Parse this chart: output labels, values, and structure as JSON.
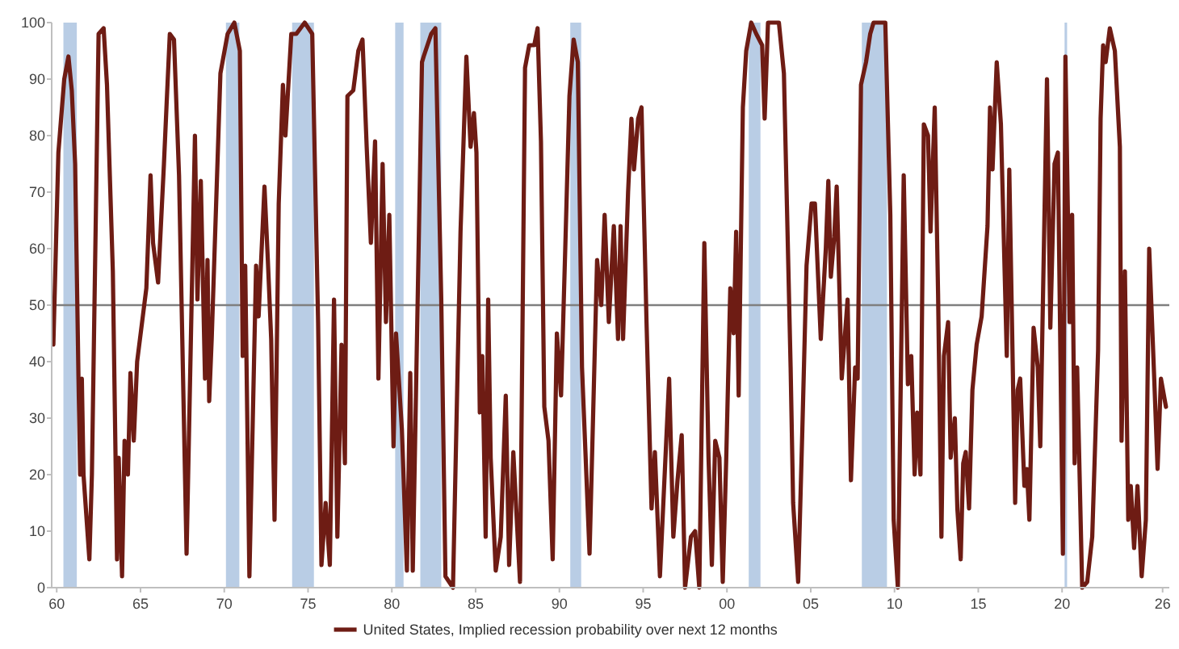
{
  "chart_data": {
    "type": "line",
    "xlim": [
      1959.7,
      2026.4
    ],
    "ylim": [
      0,
      100
    ],
    "xticks": [
      {
        "value": 1960,
        "label": "60"
      },
      {
        "value": 1965,
        "label": "65"
      },
      {
        "value": 1970,
        "label": "70"
      },
      {
        "value": 1975,
        "label": "75"
      },
      {
        "value": 1980,
        "label": "80"
      },
      {
        "value": 1985,
        "label": "85"
      },
      {
        "value": 1990,
        "label": "90"
      },
      {
        "value": 1995,
        "label": "95"
      },
      {
        "value": 2000,
        "label": "00"
      },
      {
        "value": 2005,
        "label": "05"
      },
      {
        "value": 2010,
        "label": "10"
      },
      {
        "value": 2015,
        "label": "15"
      },
      {
        "value": 2020,
        "label": "20"
      },
      {
        "value": 2026,
        "label": "26"
      }
    ],
    "yticks": [
      0,
      10,
      20,
      30,
      40,
      50,
      60,
      70,
      80,
      90,
      100
    ],
    "grid": false,
    "legend": "bottom",
    "line_style": "solid",
    "marker": "none",
    "ref_lines": [
      {
        "axis": "y",
        "value": 50,
        "label": null,
        "color": "#7f7f7f"
      }
    ],
    "bands": [
      {
        "axis": "x",
        "from": 1960.4,
        "to": 1961.2,
        "label": null,
        "color": "#b9cde5"
      },
      {
        "axis": "x",
        "from": 1970.1,
        "to": 1970.9,
        "label": null,
        "color": "#b9cde5"
      },
      {
        "axis": "x",
        "from": 1974.05,
        "to": 1975.35,
        "label": null,
        "color": "#b9cde5"
      },
      {
        "axis": "x",
        "from": 1980.2,
        "to": 1980.7,
        "label": null,
        "color": "#b9cde5"
      },
      {
        "axis": "x",
        "from": 1981.7,
        "to": 1982.95,
        "label": null,
        "color": "#b9cde5"
      },
      {
        "axis": "x",
        "from": 1990.65,
        "to": 1991.3,
        "label": null,
        "color": "#b9cde5"
      },
      {
        "axis": "x",
        "from": 2001.3,
        "to": 2002.0,
        "label": null,
        "color": "#b9cde5"
      },
      {
        "axis": "x",
        "from": 2008.05,
        "to": 2009.55,
        "label": null,
        "color": "#b9cde5"
      },
      {
        "axis": "x",
        "from": 2020.15,
        "to": 2020.3,
        "label": null,
        "color": "#b9cde5"
      }
    ],
    "series": [
      {
        "name": "United States, Implied recession probability over next 12 months",
        "color": "#6e1c14",
        "x": [
          1959.8,
          1960.1,
          1960.45,
          1960.7,
          1960.9,
          1961.1,
          1961.3,
          1961.4,
          1961.5,
          1961.6,
          1961.95,
          1962.1,
          1962.5,
          1962.8,
          1963.0,
          1963.35,
          1963.6,
          1963.7,
          1963.9,
          1964.05,
          1964.25,
          1964.4,
          1964.6,
          1964.8,
          1965.35,
          1965.6,
          1965.75,
          1966.05,
          1966.4,
          1966.55,
          1966.75,
          1967.0,
          1967.3,
          1967.75,
          1967.9,
          1968.25,
          1968.4,
          1968.6,
          1968.85,
          1969.0,
          1969.1,
          1969.25,
          1969.77,
          1970.2,
          1970.6,
          1970.93,
          1971.1,
          1971.25,
          1971.5,
          1971.9,
          1972.05,
          1972.4,
          1972.6,
          1972.8,
          1973.0,
          1973.25,
          1973.5,
          1973.65,
          1974.0,
          1974.3,
          1974.8,
          1975.25,
          1975.6,
          1975.8,
          1976.05,
          1976.3,
          1976.55,
          1976.75,
          1977.0,
          1977.2,
          1977.35,
          1977.7,
          1978.0,
          1978.25,
          1978.5,
          1978.75,
          1979.0,
          1979.2,
          1979.45,
          1979.65,
          1979.85,
          1980.1,
          1980.25,
          1980.6,
          1980.9,
          1981.1,
          1981.25,
          1981.8,
          1981.9,
          1982.35,
          1982.6,
          1982.95,
          1983.2,
          1983.65,
          1984.1,
          1984.45,
          1984.7,
          1984.9,
          1985.05,
          1985.25,
          1985.4,
          1985.6,
          1985.75,
          1985.9,
          1986.2,
          1986.5,
          1986.8,
          1987.0,
          1987.25,
          1987.65,
          1987.95,
          1988.2,
          1988.5,
          1988.7,
          1988.9,
          1989.1,
          1989.35,
          1989.6,
          1989.85,
          1990.1,
          1990.35,
          1990.6,
          1990.85,
          1991.1,
          1991.35,
          1991.8,
          1992.0,
          1992.25,
          1992.5,
          1992.7,
          1992.95,
          1993.25,
          1993.5,
          1993.65,
          1993.8,
          1994.1,
          1994.3,
          1994.45,
          1994.7,
          1994.9,
          1995.2,
          1995.5,
          1995.7,
          1996.0,
          1996.55,
          1996.8,
          1997.05,
          1997.3,
          1997.5,
          1997.85,
          1998.1,
          1998.35,
          1998.65,
          1998.9,
          1999.1,
          1999.3,
          1999.55,
          1999.75,
          1999.95,
          2000.2,
          2000.4,
          2000.55,
          2000.7,
          2000.95,
          2001.15,
          2001.45,
          2001.75,
          2002.1,
          2002.25,
          2002.45,
          2003.1,
          2003.4,
          2003.8,
          2003.95,
          2004.25,
          2004.5,
          2004.75,
          2005.05,
          2005.25,
          2005.6,
          2005.9,
          2006.05,
          2006.2,
          2006.4,
          2006.55,
          2006.85,
          2007.2,
          2007.4,
          2007.65,
          2007.8,
          2008.0,
          2008.3,
          2008.55,
          2008.75,
          2009.45,
          2009.75,
          2009.95,
          2010.2,
          2010.55,
          2010.8,
          2011.0,
          2011.2,
          2011.35,
          2011.55,
          2011.75,
          2012.0,
          2012.15,
          2012.4,
          2012.6,
          2012.8,
          2012.95,
          2013.2,
          2013.35,
          2013.6,
          2013.75,
          2013.95,
          2014.1,
          2014.25,
          2014.45,
          2014.65,
          2014.9,
          2015.2,
          2015.55,
          2015.7,
          2015.85,
          2016.1,
          2016.35,
          2016.7,
          2016.85,
          2017.2,
          2017.35,
          2017.5,
          2017.75,
          2017.9,
          2018.05,
          2018.3,
          2018.55,
          2018.7,
          2018.95,
          2019.1,
          2019.3,
          2019.55,
          2019.75,
          2020.05,
          2020.2,
          2020.45,
          2020.6,
          2020.75,
          2020.9,
          2021.2,
          2021.5,
          2021.8,
          2022.15,
          2022.3,
          2022.45,
          2022.6,
          2022.85,
          2023.15,
          2023.45,
          2023.55,
          2023.75,
          2023.95,
          2024.1,
          2024.3,
          2024.5,
          2024.75,
          2025.0,
          2025.2,
          2025.5,
          2025.7,
          2025.9,
          2026.2
        ],
        "values": [
          43,
          77,
          90,
          94,
          88,
          75,
          37,
          20,
          37,
          20,
          5,
          20,
          98,
          99,
          89,
          56,
          5,
          23,
          2,
          26,
          20,
          38,
          26,
          40,
          53,
          73,
          61,
          54,
          75,
          85,
          98,
          97,
          73,
          6,
          28,
          80,
          51,
          72,
          37,
          58,
          33,
          44,
          91,
          98,
          100,
          95,
          41,
          57,
          2,
          57,
          48,
          71,
          58,
          44,
          12,
          68,
          89,
          80,
          98,
          98,
          100,
          98,
          47,
          4,
          15,
          4,
          51,
          9,
          43,
          22,
          87,
          88,
          95,
          97,
          78,
          61,
          79,
          37,
          75,
          47,
          66,
          25,
          45,
          28,
          3,
          38,
          3,
          93,
          94,
          98,
          99,
          51,
          2,
          0,
          63,
          94,
          78,
          84,
          77,
          31,
          41,
          9,
          51,
          23,
          3,
          9,
          34,
          4,
          24,
          1,
          92,
          96,
          96,
          99,
          79,
          32,
          26,
          5,
          45,
          34,
          60,
          87,
          97,
          93,
          39,
          6,
          29,
          58,
          50,
          66,
          47,
          64,
          44,
          64,
          44,
          70,
          83,
          74,
          83,
          85,
          47,
          14,
          24,
          2,
          37,
          9,
          19,
          27,
          0,
          9,
          10,
          0,
          61,
          23,
          4,
          26,
          23,
          1,
          22,
          53,
          45,
          63,
          34,
          85,
          95,
          100,
          98,
          96,
          83,
          100,
          100,
          91,
          39,
          15,
          1,
          28,
          57,
          68,
          68,
          44,
          60,
          72,
          55,
          62,
          71,
          37,
          51,
          19,
          39,
          37,
          89,
          93,
          98,
          100,
          100,
          66,
          12,
          0,
          73,
          36,
          41,
          20,
          31,
          20,
          82,
          80,
          63,
          85,
          52,
          9,
          41,
          47,
          23,
          30,
          14,
          5,
          22,
          24,
          14,
          35,
          43,
          48,
          64,
          85,
          74,
          93,
          82,
          41,
          74,
          15,
          35,
          37,
          18,
          21,
          12,
          46,
          39,
          25,
          66,
          90,
          46,
          75,
          77,
          6,
          94,
          47,
          66,
          22,
          39,
          0,
          1,
          9,
          42,
          83,
          96,
          93,
          99,
          95,
          78,
          26,
          56,
          12,
          18,
          7,
          18,
          2,
          12,
          60,
          37,
          21,
          37,
          32
        ]
      }
    ]
  }
}
